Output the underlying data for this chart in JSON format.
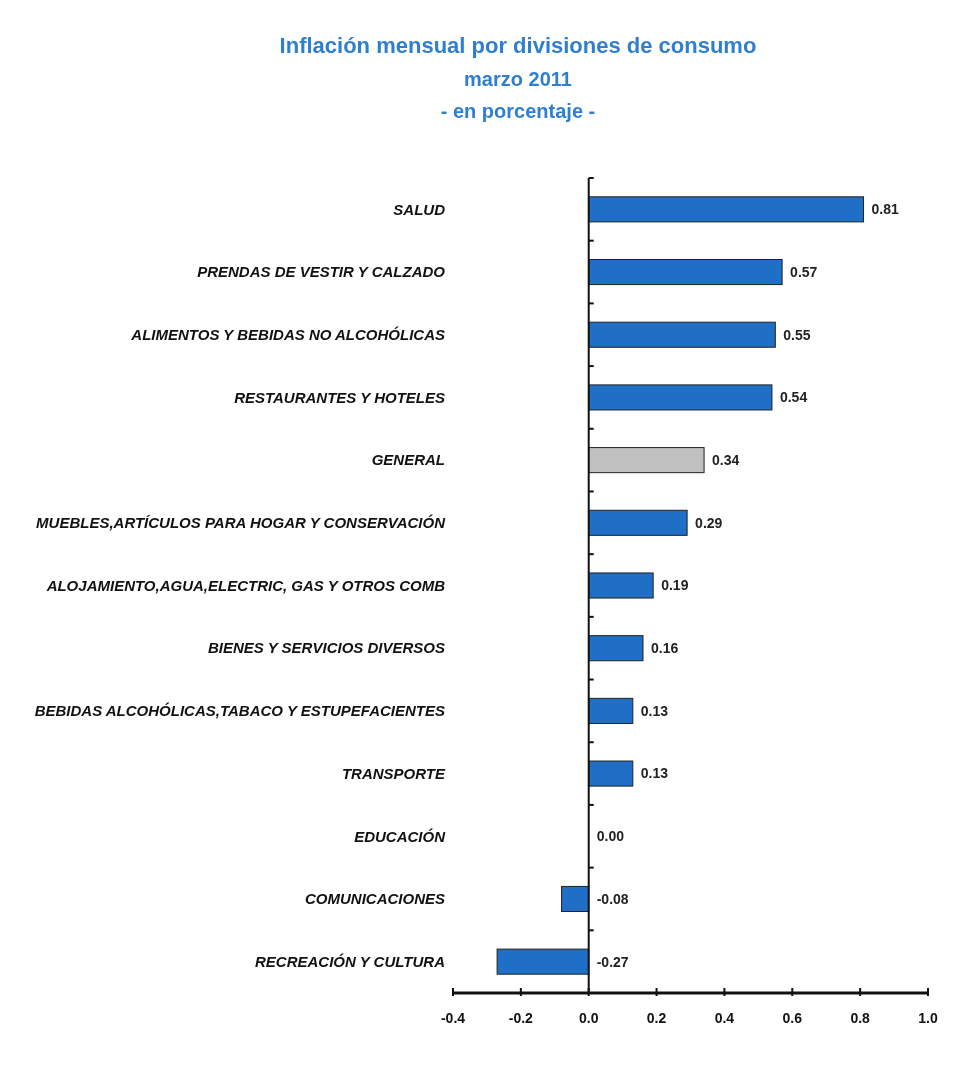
{
  "chart_data": {
    "type": "bar",
    "orientation": "horizontal",
    "title": "Inflación mensual por divisiones de consumo",
    "subtitle": "marzo 2011",
    "annotations": [
      "- en porcentaje -"
    ],
    "categories": [
      "SALUD",
      "PRENDAS DE VESTIR Y CALZADO",
      "ALIMENTOS Y BEBIDAS NO ALCOHÓLICAS",
      "RESTAURANTES Y HOTELES",
      "GENERAL",
      "MUEBLES,ARTÍCULOS PARA HOGAR Y CONSERVACIÓN",
      "ALOJAMIENTO,AGUA,ELECTRIC, GAS Y OTROS COMB",
      "BIENES Y SERVICIOS DIVERSOS",
      "BEBIDAS ALCOHÓLICAS,TABACO Y ESTUPEFACIENTES",
      "TRANSPORTE",
      "EDUCACIÓN",
      "COMUNICACIONES",
      "RECREACIÓN Y CULTURA"
    ],
    "values": [
      0.81,
      0.57,
      0.55,
      0.54,
      0.34,
      0.29,
      0.19,
      0.16,
      0.13,
      0.13,
      0.0,
      -0.08,
      -0.27
    ],
    "value_labels": [
      "0.81",
      "0.57",
      "0.55",
      "0.54",
      "0.34",
      "0.29",
      "0.19",
      "0.16",
      "0.13",
      "0.13",
      "0.00",
      "-0.08",
      "-0.27"
    ],
    "colors": [
      "#1f6fc6",
      "#1f6fc6",
      "#1f6fc6",
      "#1f6fc6",
      "#c0c0c0",
      "#1f6fc6",
      "#1f6fc6",
      "#1f6fc6",
      "#1f6fc6",
      "#1f6fc6",
      "#1f6fc6",
      "#1f6fc6",
      "#1f6fc6"
    ],
    "xlim": [
      -0.4,
      1.0
    ],
    "xticks": [
      {
        "value": -0.4,
        "label": "-0.4"
      },
      {
        "value": -0.2,
        "label": "-0.2"
      },
      {
        "value": 0,
        "label": "0.0"
      },
      {
        "value": 0.2,
        "label": "0.2"
      },
      {
        "value": 0.4,
        "label": "0.4"
      },
      {
        "value": 0.6,
        "label": "0.6"
      },
      {
        "value": 0.8,
        "label": "0.8"
      },
      {
        "value": 1.0,
        "label": "1.0"
      }
    ]
  }
}
